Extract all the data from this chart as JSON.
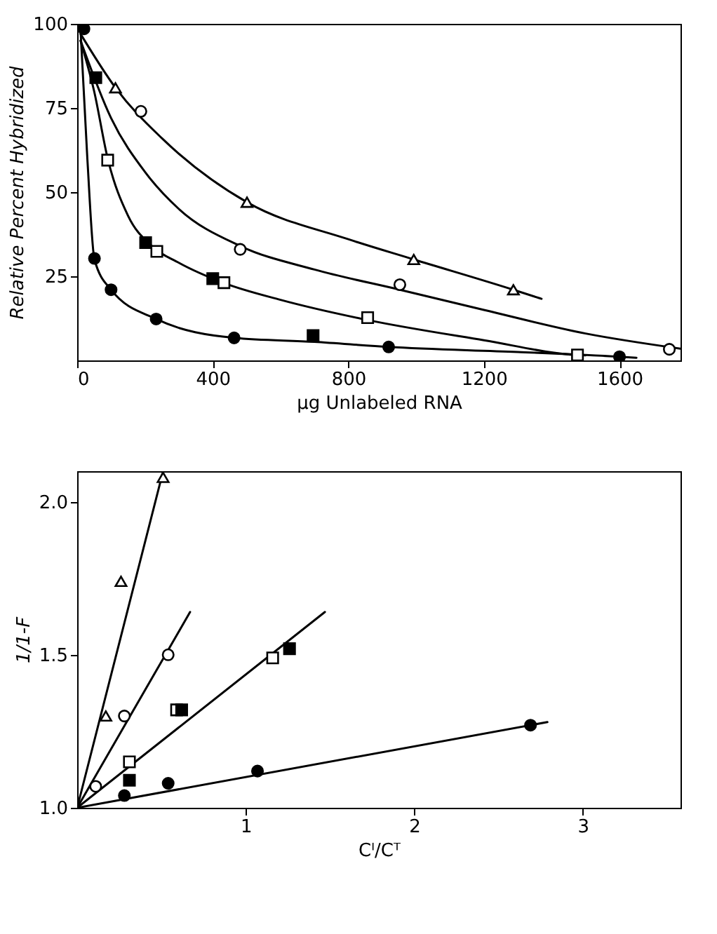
{
  "chart_data": [
    {
      "type": "scatter",
      "xlabel": "μg Unlabeled RNA",
      "ylabel": "Relative Percent Hybridized",
      "xlim": [
        0,
        1780
      ],
      "ylim": [
        0,
        100
      ],
      "xticks": [
        0,
        400,
        800,
        1200,
        1600
      ],
      "yticks": [
        25,
        50,
        75,
        100
      ],
      "grid": false,
      "series": [
        {
          "type": "line",
          "color": "#000000",
          "marker": "none",
          "x": [
            10,
            113,
            250,
            501,
            800,
            993,
            1287,
            1370
          ],
          "values": [
            97,
            81,
            66,
            47,
            36,
            30,
            21,
            18.3
          ]
        },
        {
          "type": "line",
          "color": "#000000",
          "marker": "none",
          "x": [
            10,
            100,
            200,
            300,
            481,
            700,
            952,
            1200,
            1500,
            1780
          ],
          "values": [
            95,
            72,
            56,
            45,
            34,
            27,
            21,
            15,
            8,
            3.5
          ]
        },
        {
          "type": "line",
          "color": "#000000",
          "marker": "none",
          "x": [
            10,
            50,
            90,
            150,
            220,
            300,
            433,
            600,
            857,
            1200,
            1476,
            1500
          ],
          "values": [
            95,
            80,
            60,
            43,
            34,
            29,
            23,
            18,
            12,
            6,
            1.6,
            1.5
          ]
        },
        {
          "type": "line",
          "color": "#000000",
          "marker": "none",
          "x": [
            10,
            30,
            51,
            100,
            233,
            463,
            700,
            919,
            1300,
            1600,
            1650
          ],
          "values": [
            98,
            60,
            30,
            21,
            12.3,
            6.7,
            5.5,
            4,
            2.5,
            1.1,
            0.8
          ]
        },
        {
          "color": "#ffffff",
          "marker": "triangle",
          "x": [
            113,
            501,
            993,
            1287
          ],
          "values": [
            81,
            47,
            30,
            21
          ]
        },
        {
          "color": "#ffffff",
          "marker": "circle",
          "x": [
            188,
            481,
            952,
            1747
          ],
          "values": [
            74,
            33,
            22.5,
            3.3
          ]
        },
        {
          "color": "#ffffff",
          "marker": "square",
          "x": [
            90,
            235,
            433,
            857,
            1476
          ],
          "values": [
            59.5,
            32.4,
            23.1,
            12.7,
            1.6
          ]
        },
        {
          "color": "#000000",
          "marker": "square",
          "x": [
            55,
            202,
            400,
            696
          ],
          "values": [
            84,
            35,
            24.3,
            7.4
          ]
        },
        {
          "color": "#000000",
          "marker": "circle",
          "x": [
            20,
            51,
            100,
            233,
            463,
            919,
            1600
          ],
          "values": [
            98.5,
            30.3,
            21,
            12.3,
            6.7,
            4,
            1.1
          ]
        }
      ]
    },
    {
      "type": "scatter",
      "xlabel": "Cᴵ/Cᵀ",
      "ylabel": "1/1-F",
      "xlim": [
        0,
        3.58
      ],
      "ylim": [
        1,
        2.1
      ],
      "xticks": [
        1,
        2,
        3
      ],
      "yticks": [
        {
          "value": 1,
          "label": "1.0"
        },
        {
          "value": 1.5,
          "label": "1.5"
        },
        {
          "value": 2,
          "label": "2.0"
        }
      ],
      "grid": false,
      "series": [
        {
          "type": "line",
          "color": "#000000",
          "marker": "none",
          "x": [
            0,
            0.51
          ],
          "values": [
            1,
            2.1
          ]
        },
        {
          "type": "line",
          "color": "#000000",
          "marker": "none",
          "x": [
            0,
            0.67
          ],
          "values": [
            1,
            1.64
          ]
        },
        {
          "type": "line",
          "color": "#000000",
          "marker": "none",
          "x": [
            0,
            1.47
          ],
          "values": [
            1,
            1.64
          ]
        },
        {
          "type": "line",
          "color": "#000000",
          "marker": "none",
          "x": [
            0,
            2.79
          ],
          "values": [
            1,
            1.28
          ]
        },
        {
          "color": "#ffffff",
          "marker": "triangle",
          "x": [
            0.17,
            0.26,
            0.51
          ],
          "values": [
            1.3,
            1.74,
            2.08
          ]
        },
        {
          "color": "#ffffff",
          "marker": "circle",
          "x": [
            0.11,
            0.28,
            0.54
          ],
          "values": [
            1.07,
            1.3,
            1.5
          ]
        },
        {
          "color": "#ffffff",
          "marker": "square",
          "x": [
            0.31,
            0.59,
            1.16
          ],
          "values": [
            1.15,
            1.32,
            1.49
          ]
        },
        {
          "color": "#000000",
          "marker": "square",
          "x": [
            0.31,
            0.62,
            1.26
          ],
          "values": [
            1.09,
            1.32,
            1.52
          ]
        },
        {
          "color": "#000000",
          "marker": "circle",
          "x": [
            0.28,
            0.54,
            1.07,
            2.69
          ],
          "values": [
            1.04,
            1.08,
            1.12,
            1.27
          ]
        }
      ]
    }
  ]
}
